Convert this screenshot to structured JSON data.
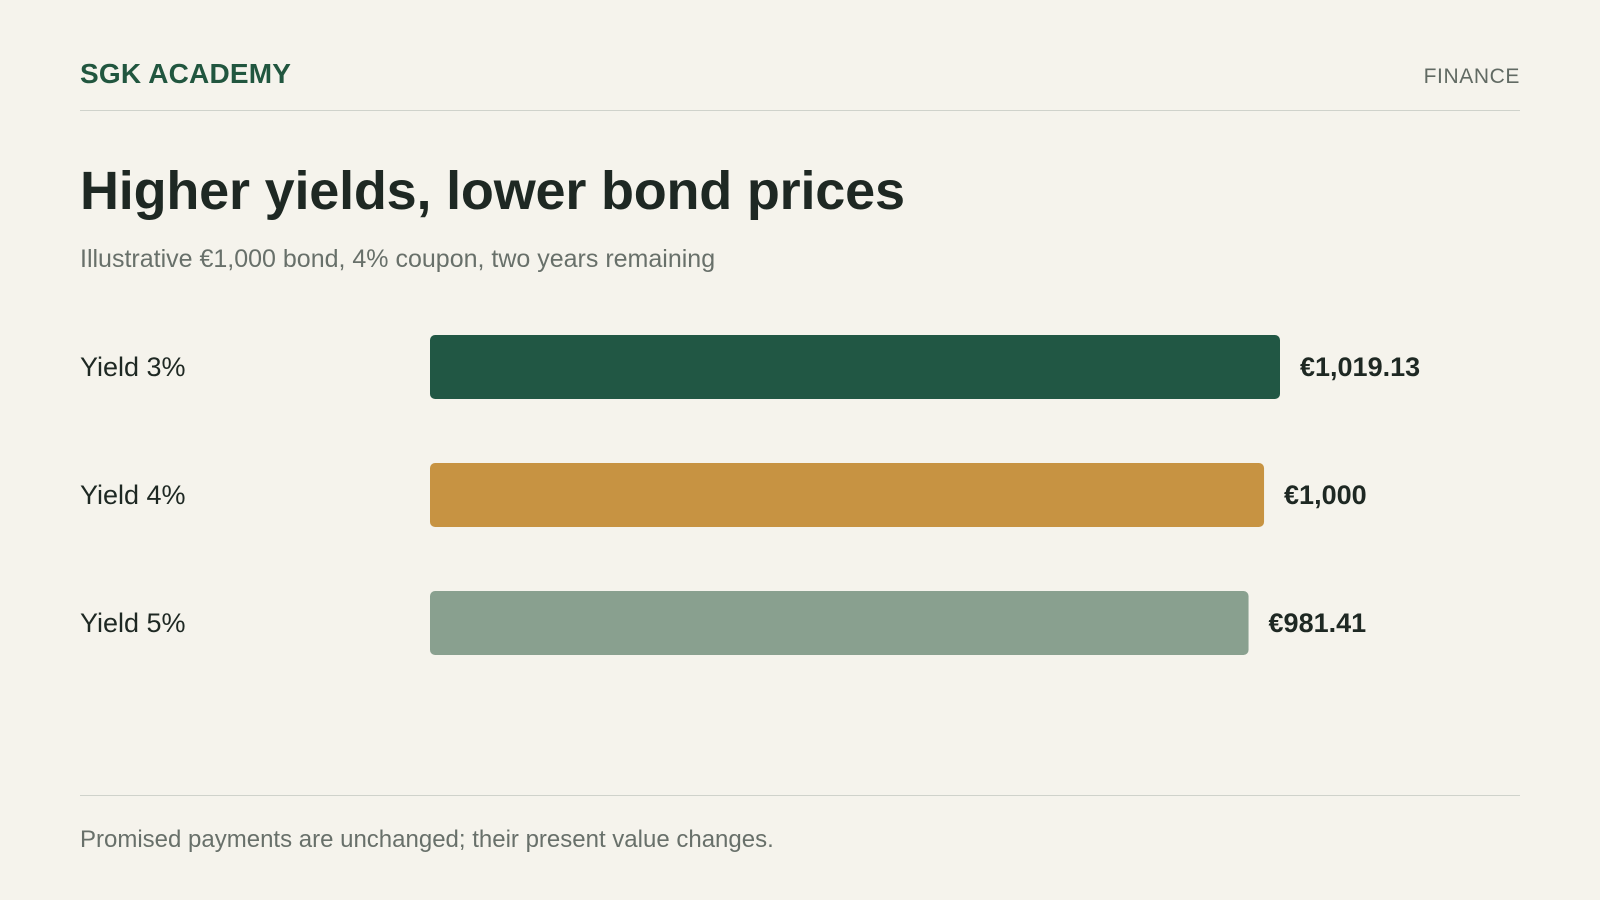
{
  "header": {
    "brand": "SGK ACADEMY",
    "section": "FINANCE"
  },
  "title": "Higher yields, lower bond prices",
  "subtitle": "Illustrative €1,000 bond, 4% coupon, two years remaining",
  "footnote": "Promised payments are unchanged; their present value changes.",
  "chart_data": {
    "type": "bar",
    "orientation": "horizontal",
    "categories": [
      "Yield 3%",
      "Yield 4%",
      "Yield 5%"
    ],
    "values": [
      1019.13,
      1000,
      981.41
    ],
    "value_labels": [
      "€1,019.13",
      "€1,000",
      "€981.41"
    ],
    "colors": [
      "#215744",
      "#c79342",
      "#89a08f"
    ],
    "xlim": [
      0,
      1019.13
    ],
    "grid": false,
    "legend": "none"
  }
}
